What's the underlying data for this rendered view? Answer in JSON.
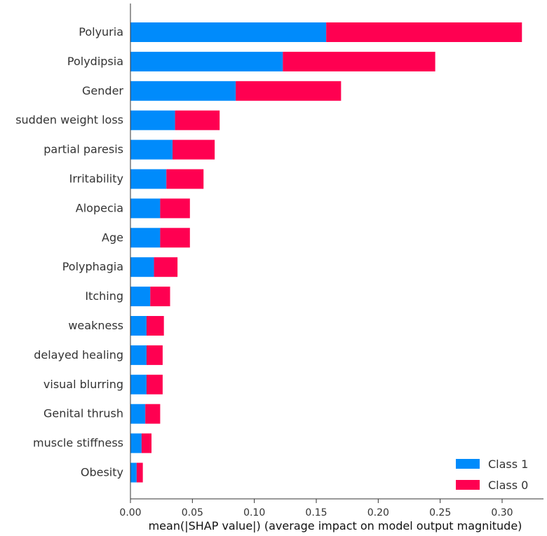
{
  "chart_data": {
    "type": "bar",
    "orientation": "horizontal",
    "stacked": true,
    "categories": [
      "Polyuria",
      "Polydipsia",
      "Gender",
      "sudden weight loss",
      "partial paresis",
      "Irritability",
      "Alopecia",
      "Age",
      "Polyphagia",
      "Itching",
      "weakness",
      "delayed healing",
      "visual blurring",
      "Genital thrush",
      "muscle stiffness",
      "Obesity"
    ],
    "series": [
      {
        "name": "Class 1",
        "color": "#008bfb",
        "values": [
          0.158,
          0.123,
          0.085,
          0.036,
          0.034,
          0.029,
          0.024,
          0.024,
          0.019,
          0.016,
          0.013,
          0.013,
          0.013,
          0.012,
          0.009,
          0.005
        ]
      },
      {
        "name": "Class 0",
        "color": "#ff0051",
        "values": [
          0.158,
          0.123,
          0.085,
          0.036,
          0.034,
          0.03,
          0.024,
          0.024,
          0.019,
          0.016,
          0.014,
          0.013,
          0.013,
          0.012,
          0.008,
          0.005
        ]
      }
    ],
    "xlabel": "mean(|SHAP value|) (average impact on model output magnitude)",
    "ylabel": "",
    "title": "",
    "xlim": [
      0.0,
      0.33
    ],
    "xticks": [
      "0.00",
      "0.05",
      "0.10",
      "0.15",
      "0.20",
      "0.25",
      "0.30"
    ],
    "legend": {
      "position": "bottom-right",
      "entries": [
        "Class 1",
        "Class 0"
      ]
    },
    "grid": false
  }
}
